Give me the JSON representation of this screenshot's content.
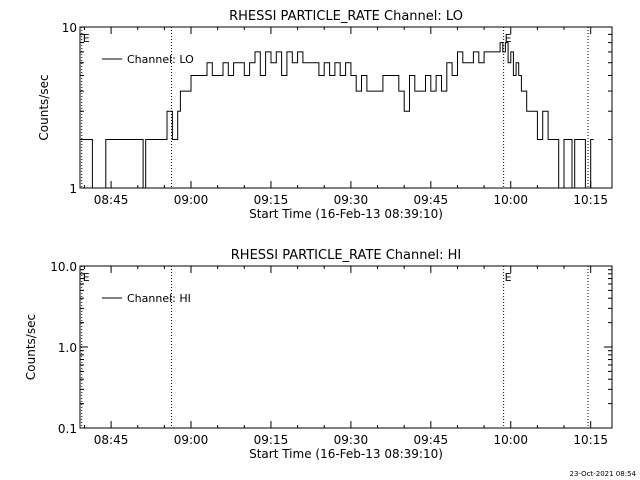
{
  "chart_data": [
    {
      "type": "line",
      "title": "RHESSI PARTICLE_RATE Channel: LO",
      "xlabel": "Start Time (16-Feb-13 08:39:10)",
      "ylabel": "Counts/sec",
      "y_scale": "log",
      "ylim": [
        1,
        10
      ],
      "y_ticks": [
        1,
        10
      ],
      "y_tick_labels": [
        "1",
        "10"
      ],
      "xlim": [
        "08:39:10",
        "10:19:00"
      ],
      "x_ticks": [
        "08:45",
        "09:00",
        "09:15",
        "09:30",
        "09:45",
        "10:00",
        "10:15"
      ],
      "x_tick_labels": [
        "08:45",
        "09:00",
        "09:15",
        "09:30",
        "09:45",
        "10:00",
        "10:15"
      ],
      "grid": false,
      "legend": "top-left",
      "markers": [
        {
          "time": "08:39:30",
          "label": "E"
        },
        {
          "time": "08:56:20",
          "label": ""
        },
        {
          "time": "09:58:40",
          "label": "E"
        },
        {
          "time": "10:14:30",
          "label": ""
        }
      ],
      "series": [
        {
          "name": "Channel: LO",
          "x": [
            "08:39:10",
            "08:40:00",
            "08:41:00",
            "08:41:30",
            "08:43:00",
            "08:44:00",
            "08:45:00",
            "08:46:00",
            "08:46:30",
            "08:47:00",
            "08:48:00",
            "08:49:00",
            "08:50:00",
            "08:51:00",
            "08:51:30",
            "08:52:00",
            "08:53:00",
            "08:53:30",
            "08:54:00",
            "08:55:00",
            "08:55:30",
            "08:56:00",
            "08:56:30",
            "08:57:00",
            "08:57:30",
            "08:58:00",
            "08:59:00",
            "09:00:00",
            "09:01:00",
            "09:02:00",
            "09:03:00",
            "09:04:00",
            "09:05:00",
            "09:06:00",
            "09:07:00",
            "09:08:00",
            "09:09:00",
            "09:10:00",
            "09:11:00",
            "09:12:00",
            "09:13:00",
            "09:14:00",
            "09:15:00",
            "09:16:00",
            "09:17:00",
            "09:18:00",
            "09:19:00",
            "09:20:00",
            "09:21:00",
            "09:22:00",
            "09:23:00",
            "09:24:00",
            "09:25:00",
            "09:26:00",
            "09:27:00",
            "09:28:00",
            "09:29:00",
            "09:30:00",
            "09:31:00",
            "09:32:00",
            "09:33:00",
            "09:34:00",
            "09:35:00",
            "09:36:00",
            "09:37:00",
            "09:38:00",
            "09:39:00",
            "09:40:00",
            "09:41:00",
            "09:42:00",
            "09:43:00",
            "09:44:00",
            "09:45:00",
            "09:46:00",
            "09:47:00",
            "09:48:00",
            "09:49:00",
            "09:50:00",
            "09:51:00",
            "09:52:00",
            "09:53:00",
            "09:54:00",
            "09:55:00",
            "09:56:00",
            "09:57:00",
            "09:58:00",
            "09:58:30",
            "09:59:00",
            "09:59:30",
            "10:00:00",
            "10:00:30",
            "10:01:00",
            "10:01:30",
            "10:02:00",
            "10:03:00",
            "10:04:00",
            "10:05:00",
            "10:06:00",
            "10:07:00",
            "10:08:00",
            "10:09:00",
            "10:10:00",
            "10:11:00",
            "10:11:30",
            "10:12:00",
            "10:13:00",
            "10:13:30",
            "10:14:00",
            "10:15:00"
          ],
          "values": [
            2,
            2,
            2,
            1,
            1,
            2,
            2,
            2,
            2,
            2,
            2,
            2,
            2,
            1,
            2,
            2,
            2,
            2,
            2,
            2,
            3,
            3,
            2,
            2,
            3,
            4,
            4,
            5,
            5,
            5,
            6,
            5,
            5,
            6,
            5,
            6,
            6,
            5,
            6,
            7,
            5,
            7,
            6,
            7,
            5,
            7,
            6,
            7,
            6,
            6,
            6,
            5,
            6,
            5,
            6,
            5,
            6,
            5,
            4,
            5,
            4,
            4,
            4,
            5,
            5,
            5,
            4,
            3,
            5,
            4,
            4,
            5,
            4,
            5,
            4,
            6,
            5,
            7,
            6,
            6,
            7,
            6,
            7,
            7,
            7,
            8,
            7,
            8,
            6,
            7,
            5,
            6,
            5,
            4,
            3,
            3,
            2,
            3,
            2,
            2,
            1,
            2,
            2,
            1,
            2,
            2,
            2,
            1,
            2
          ]
        }
      ]
    },
    {
      "type": "line",
      "title": "RHESSI PARTICLE_RATE Channel: HI",
      "xlabel": "Start Time (16-Feb-13 08:39:10)",
      "ylabel": "Counts/sec",
      "y_scale": "log",
      "ylim": [
        0.1,
        10.0
      ],
      "y_ticks": [
        0.1,
        1.0,
        10.0
      ],
      "y_tick_labels": [
        "0.1",
        "1.0",
        "10.0"
      ],
      "xlim": [
        "08:39:10",
        "10:19:00"
      ],
      "x_ticks": [
        "08:45",
        "09:00",
        "09:15",
        "09:30",
        "09:45",
        "10:00",
        "10:15"
      ],
      "x_tick_labels": [
        "08:45",
        "09:00",
        "09:15",
        "09:30",
        "09:45",
        "10:00",
        "10:15"
      ],
      "grid": false,
      "legend": "top-left",
      "markers": [
        {
          "time": "08:39:30",
          "label": "E"
        },
        {
          "time": "08:56:20",
          "label": ""
        },
        {
          "time": "09:58:40",
          "label": "E"
        },
        {
          "time": "10:14:30",
          "label": ""
        }
      ],
      "series": [
        {
          "name": "Channel: HI",
          "x": [],
          "values": []
        }
      ]
    }
  ],
  "footer": {
    "timestamp": "23-Oct-2021 08:54"
  }
}
